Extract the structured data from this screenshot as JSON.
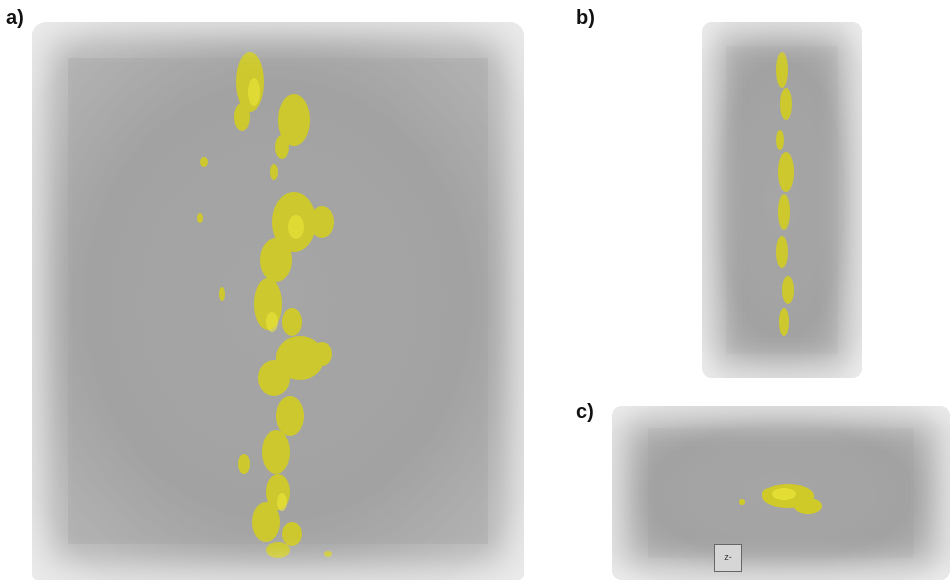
{
  "labels": {
    "a": "a)",
    "b": "b)",
    "c": "c)"
  },
  "colors": {
    "background": "#ffffff",
    "volume_gray": "#a6a6a6",
    "feature_yellow": "#d4cf1a"
  },
  "icons": {
    "scale_indicator": "axis-indicator-icon"
  },
  "scale_indicator_text": "z-"
}
